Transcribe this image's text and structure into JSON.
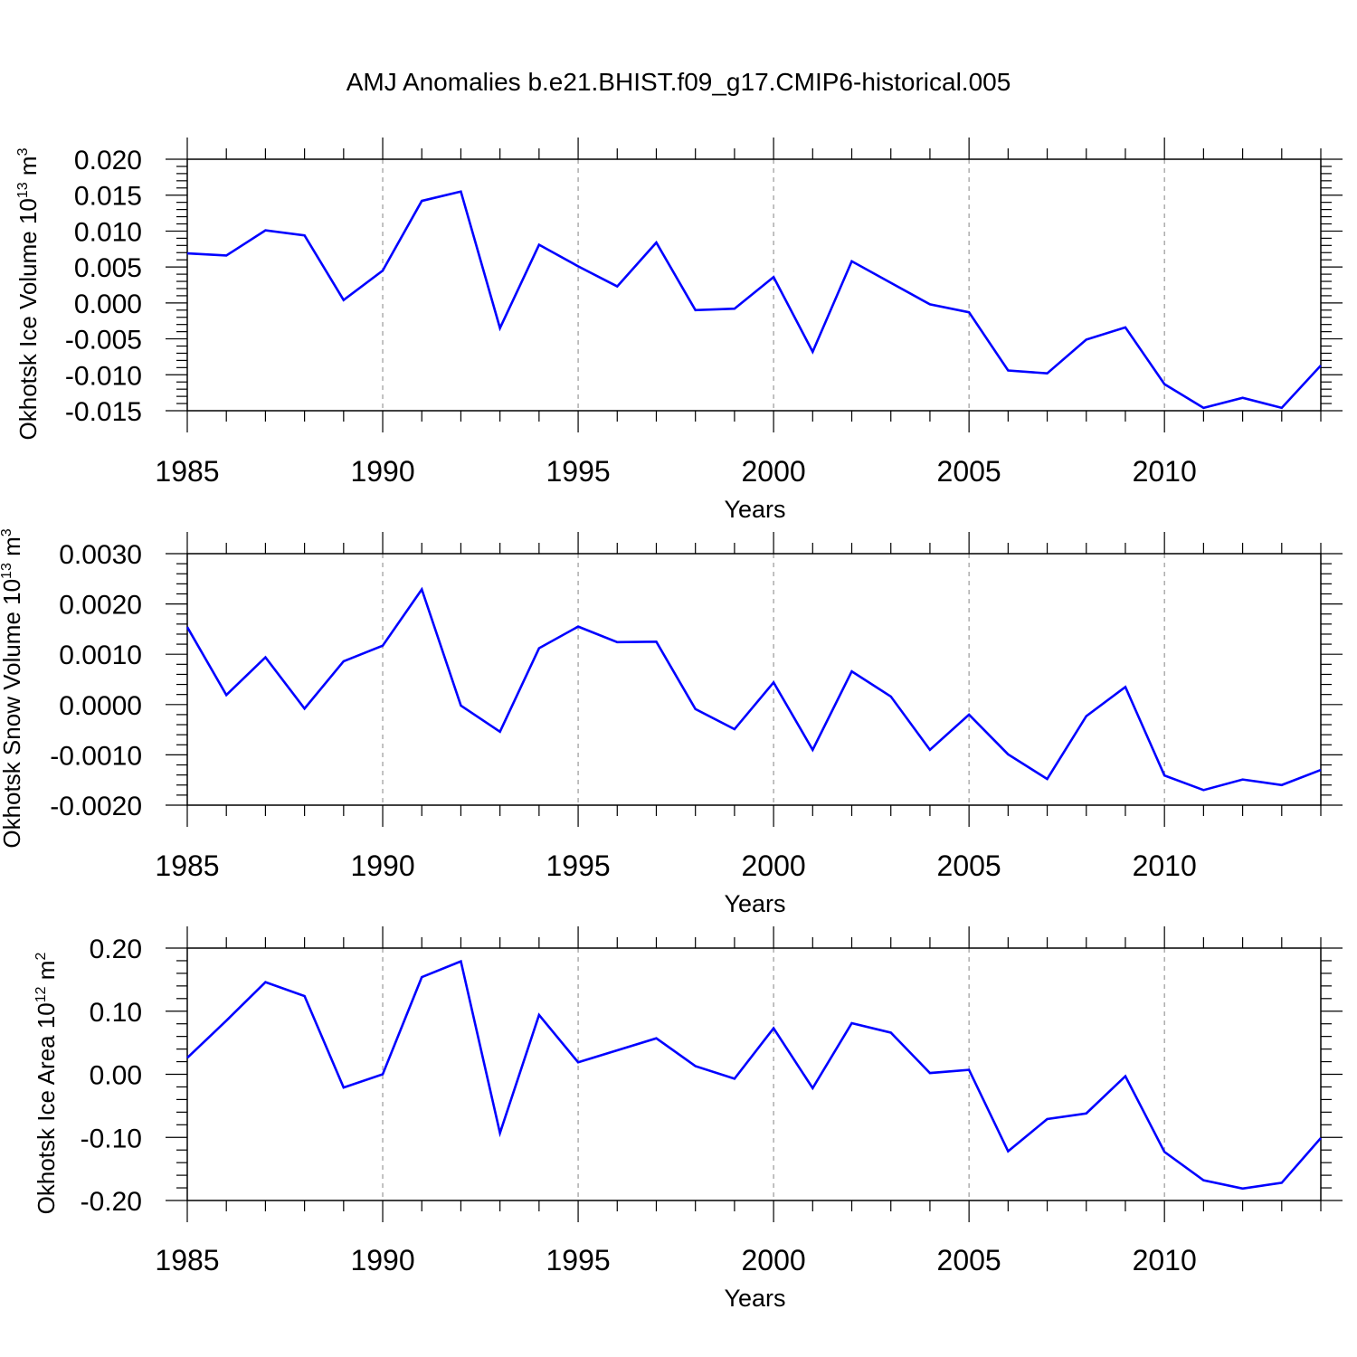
{
  "title": "AMJ Anomalies b.e21.BHIST.f09_g17.CMIP6-historical.005",
  "line_color": "#0000ff",
  "chart_data": [
    {
      "type": "line",
      "xlabel": "Years",
      "ylabel": "Okhotsk Ice Volume 10",
      "ylabel_exp": "13",
      "ylabel_unit": " m",
      "ylabel_unit_exp": "3",
      "xlim": [
        1985,
        2014
      ],
      "ylim": [
        -0.015,
        0.02
      ],
      "grid": "dashed vertical lines at major x ticks",
      "x_ticks": [
        1985,
        1990,
        1995,
        2000,
        2005,
        2010
      ],
      "x_tick_labels": [
        "1985",
        "1990",
        "1995",
        "2000",
        "2005",
        "2010"
      ],
      "y_ticks": [
        -0.015,
        -0.01,
        -0.005,
        0.0,
        0.005,
        0.01,
        0.015,
        0.02
      ],
      "y_tick_labels": [
        "-0.015",
        "-0.010",
        "-0.005",
        "0.000",
        "0.005",
        "0.010",
        "0.015",
        "0.020"
      ],
      "x": [
        1985,
        1986,
        1987,
        1988,
        1989,
        1990,
        1991,
        1992,
        1993,
        1994,
        1995,
        1996,
        1997,
        1998,
        1999,
        2000,
        2001,
        2002,
        2003,
        2004,
        2005,
        2006,
        2007,
        2008,
        2009,
        2010,
        2011,
        2012,
        2013,
        2014
      ],
      "series": [
        {
          "values": [
            0.0069,
            0.0066,
            0.0101,
            0.0094,
            0.0004,
            0.0045,
            0.0142,
            0.0155,
            -0.0035,
            0.0081,
            0.0051,
            0.0023,
            0.0084,
            -0.001,
            -0.0008,
            0.0036,
            -0.0068,
            0.0058,
            0.0028,
            -0.0002,
            -0.0013,
            -0.0094,
            -0.0098,
            -0.0051,
            -0.0034,
            -0.0113,
            -0.0146,
            -0.0132,
            -0.0146,
            -0.0087
          ]
        }
      ]
    },
    {
      "type": "line",
      "xlabel": "Years",
      "ylabel": "Okhotsk Snow Volume 10",
      "ylabel_exp": "13",
      "ylabel_unit": " m",
      "ylabel_unit_exp": "3",
      "xlim": [
        1985,
        2014
      ],
      "ylim": [
        -0.002,
        0.003
      ],
      "grid": "dashed vertical lines at major x ticks",
      "x_ticks": [
        1985,
        1990,
        1995,
        2000,
        2005,
        2010
      ],
      "x_tick_labels": [
        "1985",
        "1990",
        "1995",
        "2000",
        "2005",
        "2010"
      ],
      "y_ticks": [
        -0.002,
        -0.001,
        0.0,
        0.001,
        0.002,
        0.003
      ],
      "y_tick_labels": [
        "-0.0020",
        "-0.0010",
        "0.0000",
        "0.0010",
        "0.0020",
        "0.0030"
      ],
      "x": [
        1985,
        1986,
        1987,
        1988,
        1989,
        1990,
        1991,
        1992,
        1993,
        1994,
        1995,
        1996,
        1997,
        1998,
        1999,
        2000,
        2001,
        2002,
        2003,
        2004,
        2005,
        2006,
        2007,
        2008,
        2009,
        2010,
        2011,
        2012,
        2013,
        2014
      ],
      "series": [
        {
          "values": [
            0.00154,
            0.00019,
            0.00094,
            -8e-05,
            0.00086,
            0.00117,
            0.00229,
            -2e-05,
            -0.00054,
            0.00112,
            0.00155,
            0.00124,
            0.00125,
            -9e-05,
            -0.00049,
            0.00044,
            -0.0009,
            0.00066,
            0.00016,
            -0.0009,
            -0.0002,
            -0.00099,
            -0.00148,
            -0.00023,
            0.00035,
            -0.00141,
            -0.0017,
            -0.00149,
            -0.0016,
            -0.0013
          ]
        }
      ]
    },
    {
      "type": "line",
      "xlabel": "Years",
      "ylabel": "Okhotsk Ice Area 10",
      "ylabel_exp": "12",
      "ylabel_unit": " m",
      "ylabel_unit_exp": "2",
      "xlim": [
        1985,
        2014
      ],
      "ylim": [
        -0.2,
        0.2
      ],
      "grid": "dashed vertical lines at major x ticks",
      "x_ticks": [
        1985,
        1990,
        1995,
        2000,
        2005,
        2010
      ],
      "x_tick_labels": [
        "1985",
        "1990",
        "1995",
        "2000",
        "2005",
        "2010"
      ],
      "y_ticks": [
        -0.2,
        -0.1,
        0.0,
        0.1,
        0.2
      ],
      "y_tick_labels": [
        "-0.20",
        "-0.10",
        "0.00",
        "0.10",
        "0.20"
      ],
      "x": [
        1985,
        1986,
        1987,
        1988,
        1989,
        1990,
        1991,
        1992,
        1993,
        1994,
        1995,
        1996,
        1997,
        1998,
        1999,
        2000,
        2001,
        2002,
        2003,
        2004,
        2005,
        2006,
        2007,
        2008,
        2009,
        2010,
        2011,
        2012,
        2013,
        2014
      ],
      "series": [
        {
          "values": [
            0.026,
            0.085,
            0.146,
            0.124,
            -0.021,
            0.0,
            0.154,
            0.179,
            -0.093,
            0.094,
            0.019,
            0.038,
            0.057,
            0.013,
            -0.007,
            0.073,
            -0.022,
            0.081,
            0.066,
            0.002,
            0.007,
            -0.122,
            -0.071,
            -0.062,
            -0.003,
            -0.123,
            -0.168,
            -0.181,
            -0.172,
            -0.101
          ]
        }
      ]
    }
  ]
}
